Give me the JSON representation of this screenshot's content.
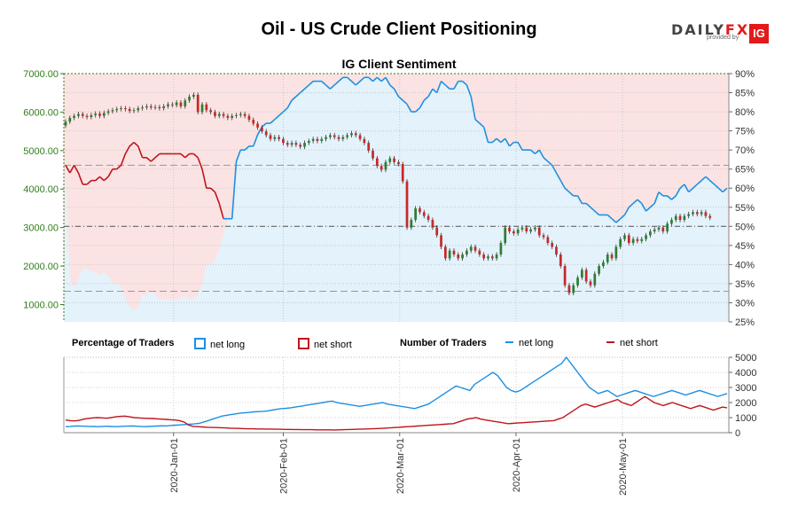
{
  "title": "Oil - US Crude Client Positioning",
  "subtitle": "IG Client Sentiment",
  "logo": {
    "brand_a": "DAILY",
    "brand_b": "FX",
    "provided_by": "provided by",
    "ig": "IG"
  },
  "legend": {
    "pct_label": "Percentage of Traders",
    "num_label": "Number of Traders",
    "net_long": "net long",
    "net_short": "net short"
  },
  "colors": {
    "long": "#1f8fe0",
    "short": "#c0141c",
    "price_axis": "#2f7d1a",
    "short_zone": "#fbe3e3",
    "long_zone": "#e3f2fb",
    "candle_up": "#2e7d32",
    "candle_down": "#c62828"
  },
  "chart_data": [
    {
      "type": "candlestick",
      "title": "IG Client Sentiment",
      "left_axis": {
        "ticks": [
          "1000.00",
          "2000.00",
          "3000.00",
          "4000.00",
          "5000.00",
          "6000.00",
          "7000.00"
        ],
        "range": [
          550,
          7000
        ]
      },
      "right_axis": {
        "ticks": [
          "25%",
          "30%",
          "35%",
          "40%",
          "45%",
          "50%",
          "55%",
          "60%",
          "65%",
          "70%",
          "75%",
          "80%",
          "85%",
          "90%"
        ],
        "range": [
          25,
          90
        ]
      },
      "reference_lines_pct": [
        33,
        50,
        66
      ],
      "grid": true,
      "price_close": [
        5750,
        5850,
        5900,
        5950,
        5900,
        5870,
        5920,
        5960,
        5900,
        5980,
        6020,
        6050,
        6080,
        6100,
        6080,
        6030,
        6050,
        6100,
        6120,
        6150,
        6120,
        6130,
        6100,
        6150,
        6200,
        6180,
        6250,
        6150,
        6300,
        6400,
        6450,
        6000,
        6200,
        6050,
        6000,
        5900,
        5950,
        5900,
        5850,
        5900,
        5920,
        5950,
        5900,
        5800,
        5700,
        5600,
        5500,
        5400,
        5300,
        5350,
        5300,
        5200,
        5150,
        5200,
        5150,
        5100,
        5200,
        5250,
        5300,
        5250,
        5300,
        5350,
        5400,
        5350,
        5300,
        5350,
        5400,
        5450,
        5400,
        5300,
        5200,
        5000,
        4800,
        4600,
        4500,
        4700,
        4800,
        4700,
        4650,
        4200,
        3000,
        3200,
        3500,
        3400,
        3300,
        3200,
        3000,
        2800,
        2500,
        2200,
        2400,
        2300,
        2200,
        2300,
        2400,
        2500,
        2400,
        2300,
        2200,
        2250,
        2200,
        2300,
        2600,
        3000,
        2900,
        2850,
        2950,
        3000,
        2900,
        2950,
        3000,
        2800,
        2750,
        2600,
        2500,
        2300,
        2000,
        1500,
        1300,
        1500,
        1700,
        1900,
        1600,
        1500,
        1800,
        2000,
        2100,
        2300,
        2200,
        2500,
        2700,
        2800,
        2600,
        2700,
        2650,
        2700,
        2800,
        2900,
        2950,
        3000,
        2900,
        3100,
        3200,
        3300,
        3200,
        3300,
        3350,
        3400,
        3350,
        3400,
        3300,
        3250
      ],
      "long_pct": [
        66,
        36,
        34,
        36,
        39,
        39,
        38,
        38,
        37,
        38,
        37,
        35,
        35,
        34,
        31,
        29,
        28,
        29,
        32,
        32,
        33,
        32,
        31,
        31,
        31,
        31,
        31,
        31,
        32,
        31,
        31,
        32,
        35,
        40,
        40,
        41,
        44,
        48,
        52,
        52,
        67,
        70,
        70,
        71,
        71,
        74,
        76,
        77,
        77,
        78,
        79,
        80,
        81,
        83,
        84,
        85,
        86,
        87,
        88,
        88,
        88,
        87,
        86,
        87,
        88,
        89,
        89,
        88,
        87,
        88,
        89,
        89,
        88,
        89,
        88,
        89,
        87,
        86,
        84,
        83,
        82,
        80,
        80,
        81,
        83,
        84,
        86,
        85,
        88,
        87,
        86,
        86,
        88,
        88,
        87,
        84,
        78,
        77,
        76,
        72,
        72,
        73,
        72,
        73,
        71,
        72,
        72,
        70,
        70,
        70,
        69,
        70,
        68,
        67,
        66,
        64,
        62,
        60,
        59,
        58,
        58,
        56,
        56,
        55,
        54,
        53,
        53,
        53,
        52,
        51,
        52,
        53,
        55,
        56,
        57,
        56,
        54,
        55,
        56,
        59,
        58,
        58,
        57,
        58,
        60,
        61,
        59,
        60,
        61,
        62,
        63,
        62,
        61,
        60,
        59,
        60
      ],
      "short_pct": [
        34,
        64,
        66,
        64,
        61,
        61,
        62,
        62,
        63,
        62,
        63,
        65,
        65,
        66,
        69,
        71,
        72,
        71,
        68,
        68,
        67,
        68,
        69,
        69,
        69,
        69,
        69,
        69,
        68,
        69,
        69,
        68,
        65,
        60,
        60,
        59,
        56,
        52,
        48,
        48,
        33,
        30,
        30,
        29,
        29,
        26,
        24,
        23,
        23,
        22,
        21,
        20,
        19,
        17,
        16,
        15,
        14,
        13,
        12,
        12,
        12,
        13,
        14,
        13,
        12,
        11,
        11,
        12,
        13,
        12,
        11,
        11,
        12,
        11,
        12,
        11,
        13,
        14,
        16,
        17,
        18,
        20,
        20,
        19,
        17,
        16,
        14,
        15,
        12,
        13,
        14,
        14,
        12,
        12,
        13,
        16,
        22,
        23,
        24,
        28,
        28,
        27,
        28,
        27,
        29,
        28,
        28,
        30,
        30,
        30,
        31,
        30,
        32,
        33,
        34,
        36,
        38,
        40,
        41,
        42,
        42,
        44,
        44,
        45,
        46,
        47,
        47,
        47,
        48,
        49,
        48,
        47,
        45,
        44,
        43,
        44,
        46,
        45,
        44,
        41,
        42,
        42,
        43,
        42,
        40,
        39,
        41,
        40,
        39,
        38,
        37,
        38,
        39,
        40,
        41,
        40
      ]
    },
    {
      "type": "line",
      "title": "Number of Traders",
      "y_ticks": [
        "0",
        "1000",
        "2000",
        "3000",
        "4000",
        "5000"
      ],
      "ylim": [
        0,
        5000
      ],
      "x_ticks": [
        "2020-Jan-01",
        "2020-Feb-01",
        "2020-Mar-01",
        "2020-Apr-01",
        "2020-May-01"
      ],
      "series": [
        {
          "name": "net long",
          "values": [
            400,
            420,
            450,
            440,
            430,
            420,
            410,
            400,
            420,
            430,
            410,
            400,
            420,
            430,
            450,
            440,
            420,
            400,
            410,
            430,
            440,
            460,
            450,
            480,
            500,
            520,
            540,
            560,
            580,
            620,
            700,
            800,
            900,
            1000,
            1100,
            1150,
            1200,
            1250,
            1300,
            1320,
            1350,
            1380,
            1400,
            1420,
            1450,
            1500,
            1550,
            1600,
            1620,
            1650,
            1700,
            1750,
            1800,
            1850,
            1900,
            1950,
            2000,
            2050,
            2100,
            2000,
            1950,
            1900,
            1850,
            1800,
            1750,
            1800,
            1850,
            1900,
            1950,
            2000,
            1900,
            1850,
            1800,
            1750,
            1700,
            1650,
            1600,
            1700,
            1800,
            1900,
            2100,
            2300,
            2500,
            2700,
            2900,
            3100,
            3000,
            2900,
            2800,
            3200,
            3400,
            3600,
            3800,
            4000,
            3800,
            3400,
            3000,
            2800,
            2700,
            2800,
            3000,
            3200,
            3400,
            3600,
            3800,
            4000,
            4200,
            4400,
            4600,
            5000,
            4600,
            4200,
            3800,
            3400,
            3000,
            2800,
            2600,
            2700,
            2800,
            2600,
            2400,
            2500,
            2600,
            2700,
            2800,
            2700,
            2600,
            2500,
            2400,
            2500,
            2600,
            2700,
            2800,
            2700,
            2600,
            2500,
            2600,
            2700,
            2800,
            2700,
            2600,
            2500,
            2400,
            2500,
            2600
          ],
          "color": "#1f8fe0"
        },
        {
          "name": "net short",
          "values": [
            850,
            800,
            780,
            820,
            900,
            950,
            980,
            1000,
            980,
            960,
            1000,
            1050,
            1080,
            1100,
            1050,
            1000,
            980,
            960,
            950,
            940,
            920,
            900,
            880,
            860,
            840,
            800,
            700,
            500,
            420,
            400,
            380,
            360,
            350,
            340,
            330,
            320,
            300,
            290,
            280,
            270,
            260,
            260,
            250,
            250,
            240,
            240,
            230,
            230,
            220,
            220,
            210,
            210,
            200,
            200,
            200,
            190,
            190,
            190,
            190,
            180,
            190,
            200,
            210,
            220,
            230,
            240,
            250,
            260,
            270,
            280,
            300,
            320,
            340,
            360,
            380,
            400,
            420,
            440,
            460,
            480,
            500,
            520,
            540,
            560,
            580,
            600,
            700,
            800,
            900,
            950,
            1000,
            900,
            850,
            800,
            750,
            700,
            650,
            600,
            620,
            640,
            660,
            680,
            700,
            720,
            740,
            760,
            780,
            800,
            900,
            1000,
            1200,
            1400,
            1600,
            1800,
            1900,
            1800,
            1700,
            1800,
            1900,
            2000,
            2100,
            2200,
            2000,
            1900,
            1800,
            2000,
            2200,
            2400,
            2200,
            2000,
            1900,
            1800,
            1900,
            2000,
            1900,
            1800,
            1700,
            1600,
            1700,
            1800,
            1700,
            1600,
            1500,
            1600,
            1700,
            1650
          ],
          "color": "#c0141c"
        }
      ]
    }
  ]
}
